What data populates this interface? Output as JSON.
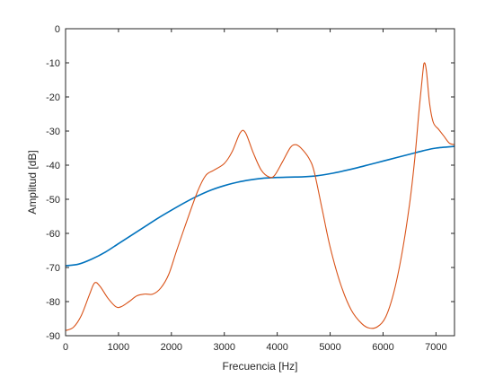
{
  "chart_data": {
    "type": "line",
    "title": "",
    "xlabel": "Frecuencia [Hz]",
    "ylabel": "Amplitud [dB]",
    "xlim": [
      0,
      7350
    ],
    "ylim": [
      -90,
      0
    ],
    "x_ticks": [
      0,
      1000,
      2000,
      3000,
      4000,
      5000,
      6000,
      7000
    ],
    "y_ticks": [
      0,
      -10,
      -20,
      -30,
      -40,
      -50,
      -60,
      -70,
      -80,
      -90
    ],
    "grid": false,
    "legend": "none",
    "series": [
      {
        "color": "#0072BD",
        "points": [
          [
            0,
            -69.5
          ],
          [
            250,
            -69.0
          ],
          [
            500,
            -67.5
          ],
          [
            750,
            -65.5
          ],
          [
            1000,
            -63.0
          ],
          [
            1250,
            -60.5
          ],
          [
            1500,
            -58.0
          ],
          [
            1750,
            -55.5
          ],
          [
            2000,
            -53.2
          ],
          [
            2250,
            -51.0
          ],
          [
            2500,
            -49.0
          ],
          [
            2750,
            -47.3
          ],
          [
            3000,
            -46.0
          ],
          [
            3250,
            -45.0
          ],
          [
            3500,
            -44.3
          ],
          [
            3750,
            -43.8
          ],
          [
            4000,
            -43.6
          ],
          [
            4250,
            -43.5
          ],
          [
            4500,
            -43.4
          ],
          [
            4750,
            -43.1
          ],
          [
            5000,
            -42.5
          ],
          [
            5250,
            -41.7
          ],
          [
            5500,
            -40.8
          ],
          [
            5750,
            -39.8
          ],
          [
            6000,
            -38.8
          ],
          [
            6250,
            -37.8
          ],
          [
            6500,
            -36.8
          ],
          [
            6750,
            -35.8
          ],
          [
            7000,
            -35.0
          ],
          [
            7350,
            -34.5
          ]
        ]
      },
      {
        "color": "#D95319",
        "points": [
          [
            0,
            -88.5
          ],
          [
            150,
            -87.5
          ],
          [
            300,
            -84
          ],
          [
            450,
            -78
          ],
          [
            550,
            -74.5
          ],
          [
            650,
            -75.5
          ],
          [
            800,
            -79
          ],
          [
            950,
            -81.5
          ],
          [
            1050,
            -81.5
          ],
          [
            1200,
            -80
          ],
          [
            1350,
            -78.3
          ],
          [
            1500,
            -77.8
          ],
          [
            1650,
            -77.8
          ],
          [
            1800,
            -76
          ],
          [
            1950,
            -72
          ],
          [
            2100,
            -65
          ],
          [
            2300,
            -56
          ],
          [
            2500,
            -47.5
          ],
          [
            2650,
            -43
          ],
          [
            2800,
            -41.5
          ],
          [
            3000,
            -39.5
          ],
          [
            3150,
            -36
          ],
          [
            3300,
            -30.5
          ],
          [
            3400,
            -30.5
          ],
          [
            3550,
            -36.5
          ],
          [
            3700,
            -41.5
          ],
          [
            3850,
            -43.5
          ],
          [
            3950,
            -43
          ],
          [
            4100,
            -39
          ],
          [
            4250,
            -34.8
          ],
          [
            4350,
            -34
          ],
          [
            4450,
            -35
          ],
          [
            4600,
            -38
          ],
          [
            4700,
            -42
          ],
          [
            4850,
            -53
          ],
          [
            5000,
            -64
          ],
          [
            5200,
            -75
          ],
          [
            5400,
            -82.5
          ],
          [
            5600,
            -86.5
          ],
          [
            5750,
            -87.8
          ],
          [
            5900,
            -87.3
          ],
          [
            6050,
            -84.5
          ],
          [
            6200,
            -77.5
          ],
          [
            6350,
            -66.5
          ],
          [
            6500,
            -51.5
          ],
          [
            6600,
            -38
          ],
          [
            6680,
            -24
          ],
          [
            6750,
            -13
          ],
          [
            6780,
            -10
          ],
          [
            6820,
            -12.5
          ],
          [
            6880,
            -22
          ],
          [
            6950,
            -27.5
          ],
          [
            7050,
            -29.5
          ],
          [
            7150,
            -31.5
          ],
          [
            7250,
            -33.5
          ],
          [
            7350,
            -34
          ]
        ]
      }
    ]
  }
}
